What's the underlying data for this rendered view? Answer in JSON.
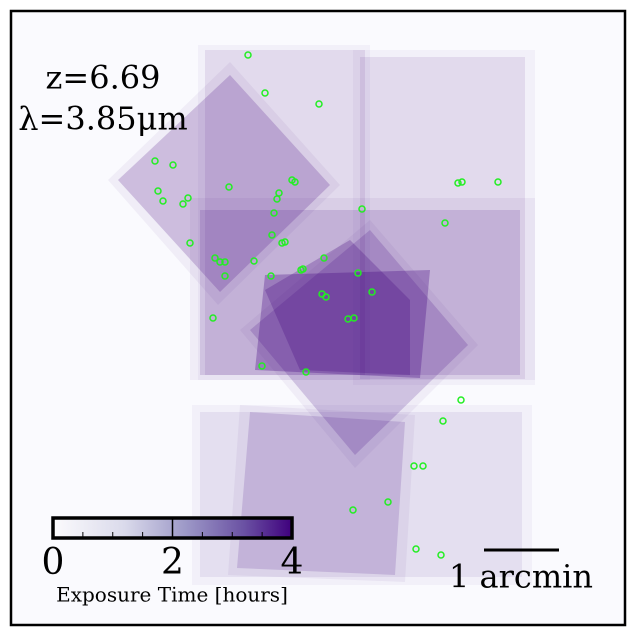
{
  "labels": {
    "redshift": "z=6.69",
    "wavelength": "λ=3.85μm"
  },
  "colorbar": {
    "label": "Exposure Time [hours]",
    "lim": [
      0,
      4
    ],
    "ticks": [
      0,
      2,
      4
    ],
    "minor_ticks": [
      0.5,
      1,
      1.5,
      2.5,
      3,
      3.5
    ]
  },
  "scale_bar": "1 arcmin"
}
